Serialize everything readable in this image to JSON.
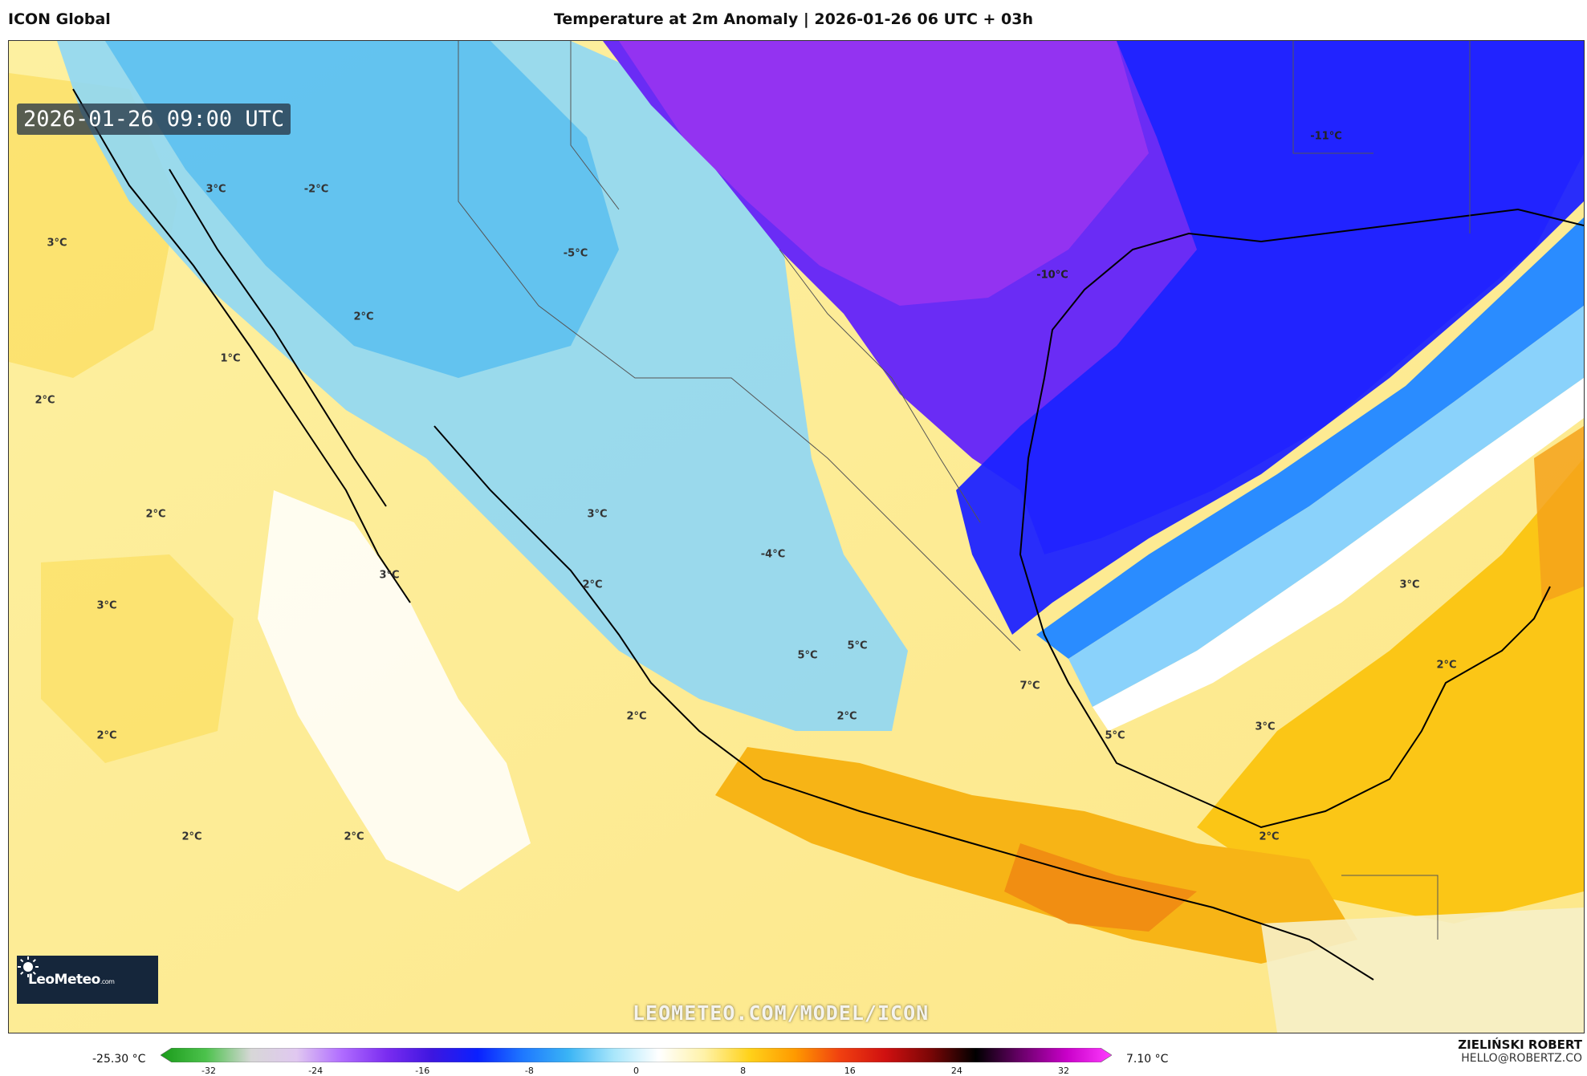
{
  "header": {
    "model": "ICON Global",
    "title": "Temperature at 2m Anomaly | 2026-01-26 06 UTC + 03h"
  },
  "map": {
    "valid_time": "2026-01-26 09:00 UTC",
    "watermark": "LEOMETEO.COM/MODEL/ICON",
    "labels": [
      {
        "text": "3°C"
      },
      {
        "text": "-2°C"
      },
      {
        "text": "3°C"
      },
      {
        "text": "-5°C"
      },
      {
        "text": "2°C"
      },
      {
        "text": "1°C"
      },
      {
        "text": "2°C"
      },
      {
        "text": "2°C"
      },
      {
        "text": "3°C"
      },
      {
        "text": "3°C"
      },
      {
        "text": "2°C"
      },
      {
        "text": "3°C"
      },
      {
        "text": "-4°C"
      },
      {
        "text": "5°C"
      },
      {
        "text": "5°C"
      },
      {
        "text": "7°C"
      },
      {
        "text": "2°C"
      },
      {
        "text": "2°C"
      },
      {
        "text": "2°C"
      },
      {
        "text": "5°C"
      },
      {
        "text": "3°C"
      },
      {
        "text": "2°C"
      },
      {
        "text": "3°C"
      },
      {
        "text": "2°C"
      },
      {
        "text": "2°C"
      },
      {
        "text": "2°C"
      },
      {
        "text": "-11°C"
      },
      {
        "text": "-10°C"
      }
    ]
  },
  "logo": {
    "brand": "LeoMeteo",
    "suffix": ".com"
  },
  "legend": {
    "min": "-25.30 °C",
    "max": "7.10 °C",
    "ticks": [
      "-32",
      "-24",
      "-16",
      "-8",
      "0",
      "8",
      "16",
      "24",
      "32"
    ],
    "stops": [
      "#1a9b1a",
      "#4cc24c",
      "#d7d7d7",
      "#e0c8f0",
      "#b06cff",
      "#7a2cf0",
      "#3d16e0",
      "#0a20ff",
      "#1e78ff",
      "#3ab4f5",
      "#a8e6fb",
      "#ffffff",
      "#fff2a8",
      "#ffd21a",
      "#ff9a00",
      "#f04010",
      "#d01010",
      "#7a0606",
      "#000000",
      "#6a006a",
      "#c800c8",
      "#ff3cff"
    ]
  },
  "author": {
    "name": "ZIELIŃSKI ROBERT",
    "email": "HELLO@ROBERTZ.CO"
  }
}
